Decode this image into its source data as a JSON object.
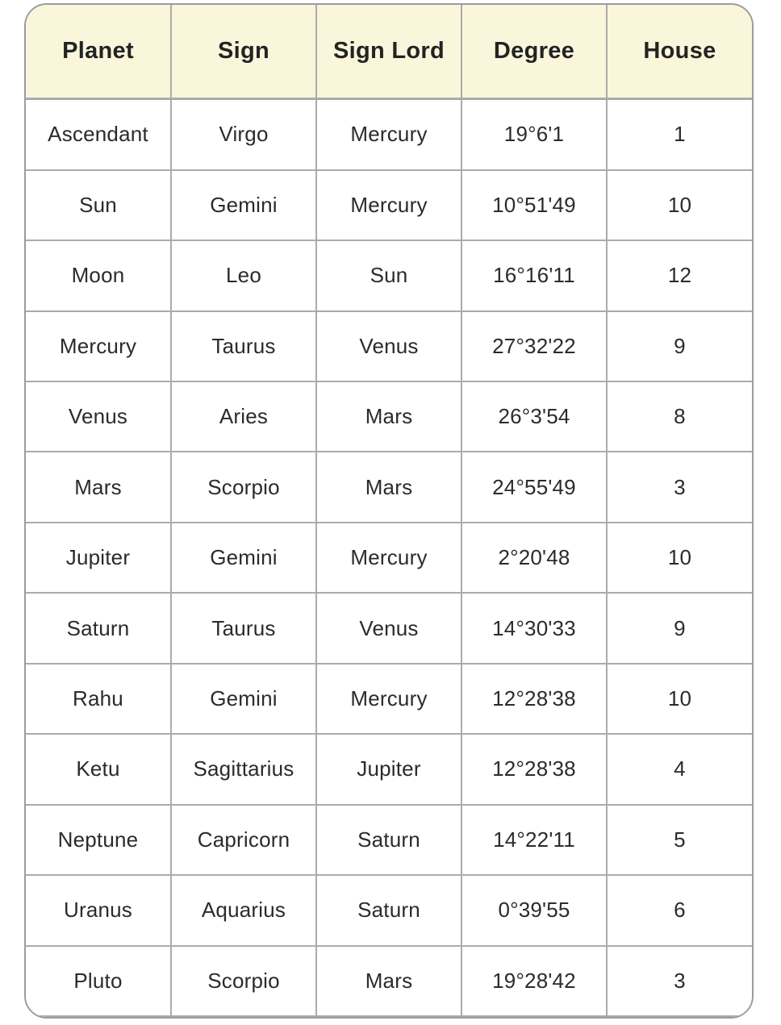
{
  "table": {
    "columns": [
      "Planet",
      "Sign",
      "Sign Lord",
      "Degree",
      "House"
    ],
    "rows": [
      [
        "Ascendant",
        "Virgo",
        "Mercury",
        "19°6'1",
        "1"
      ],
      [
        "Sun",
        "Gemini",
        "Mercury",
        "10°51'49",
        "10"
      ],
      [
        "Moon",
        "Leo",
        "Sun",
        "16°16'11",
        "12"
      ],
      [
        "Mercury",
        "Taurus",
        "Venus",
        "27°32'22",
        "9"
      ],
      [
        "Venus",
        "Aries",
        "Mars",
        "26°3'54",
        "8"
      ],
      [
        "Mars",
        "Scorpio",
        "Mars",
        "24°55'49",
        "3"
      ],
      [
        "Jupiter",
        "Gemini",
        "Mercury",
        "2°20'48",
        "10"
      ],
      [
        "Saturn",
        "Taurus",
        "Venus",
        "14°30'33",
        "9"
      ],
      [
        "Rahu",
        "Gemini",
        "Mercury",
        "12°28'38",
        "10"
      ],
      [
        "Ketu",
        "Sagittarius",
        "Jupiter",
        "12°28'38",
        "4"
      ],
      [
        "Neptune",
        "Capricorn",
        "Saturn",
        "14°22'11",
        "5"
      ],
      [
        "Uranus",
        "Aquarius",
        "Saturn",
        "0°39'55",
        "6"
      ],
      [
        "Pluto",
        "Scorpio",
        "Mars",
        "19°28'42",
        "3"
      ]
    ]
  },
  "colors": {
    "header_bg": "#FAF6DB",
    "border": "#ABABAB",
    "outer_border": "#9C9C9C",
    "text": "#232323"
  }
}
